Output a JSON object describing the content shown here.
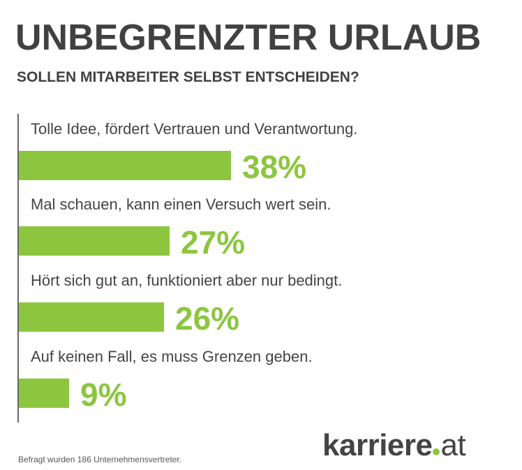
{
  "title": "UNBEGRENZTER URLAUB",
  "subtitle": "SOLLEN MITARBEITER SELBST ENTSCHEIDEN?",
  "colors": {
    "bar": "#8cc63f",
    "text": "#444444"
  },
  "chart_data": {
    "type": "bar",
    "orientation": "horizontal",
    "categories": [
      "Tolle Idee, fördert Vertrauen und Verantwortung.",
      "Mal schauen, kann einen Versuch wert sein.",
      "Hört sich gut an, funktioniert aber nur bedingt.",
      "Auf keinen Fall, es muss Grenzen geben."
    ],
    "values": [
      38,
      27,
      26,
      9
    ],
    "value_labels": [
      "38%",
      "27%",
      "26%",
      "9%"
    ],
    "unit": "%"
  },
  "footer": {
    "note": "Befragt wurden 186 Unternehmensvertreter.",
    "logo_text": "karriere.at",
    "logo_main": "karriere",
    "logo_tld": "at"
  }
}
